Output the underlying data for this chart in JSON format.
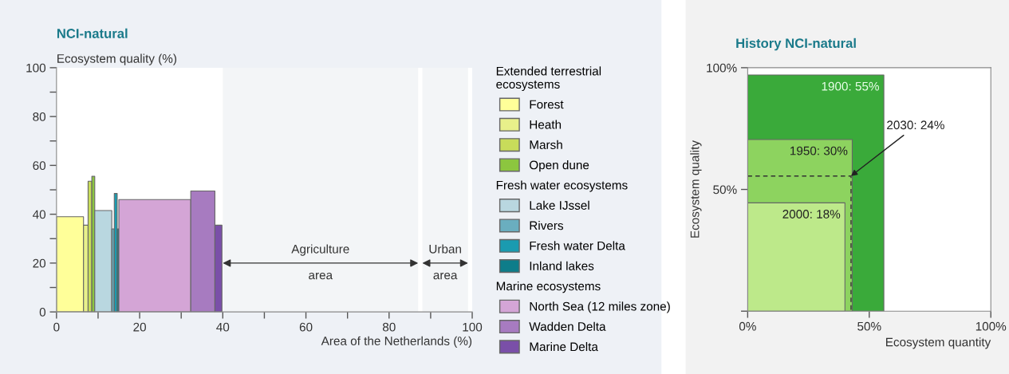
{
  "chart_data": [
    {
      "type": "area",
      "title": "NCI-natural",
      "xlabel": "Area of the Netherlands (%)",
      "ylabel": "Ecosystem quality (%)",
      "xlim": [
        0,
        100
      ],
      "ylim": [
        0,
        100
      ],
      "xticks": [
        0,
        {
          "value": 10,
          "label": null
        },
        20,
        {
          "value": 30,
          "label": null
        },
        40,
        {
          "value": 50,
          "label": null
        },
        60,
        {
          "value": 70,
          "label": null
        },
        80,
        {
          "value": 90,
          "label": null
        },
        100
      ],
      "yticks": [
        0,
        {
          "value": 10,
          "label": null
        },
        20,
        {
          "value": 30,
          "label": null
        },
        40,
        {
          "value": 50,
          "label": null
        },
        60,
        {
          "value": 70,
          "label": null
        },
        80,
        {
          "value": 90,
          "label": null
        },
        100
      ],
      "legend": "right",
      "grid": false,
      "annotations": [
        "Extended terrestrial\necosystems",
        "Fresh water ecosystems",
        "Marine ecosystems"
      ],
      "bands": [
        {
          "axis": "x",
          "from": 40,
          "to": 87,
          "label": "Agriculture\narea",
          "color": "#f3f5f7"
        },
        {
          "axis": "x",
          "from": 88,
          "to": 99,
          "label": "Urban\narea",
          "color": "#f3f5f7"
        }
      ],
      "series": [
        {
          "name": "Forest",
          "color": "#ffff99",
          "x": [
            0,
            6.5
          ],
          "values": [
            39,
            39
          ]
        },
        {
          "name": "Heath",
          "color": "#e8f08a",
          "x": [
            6.5,
            7.6
          ],
          "values": [
            35.5,
            35.5
          ]
        },
        {
          "name": "Marsh",
          "color": "#c8dc5a",
          "x": [
            7.6,
            8.5
          ],
          "values": [
            53.5,
            53.5
          ]
        },
        {
          "name": "Open dune",
          "color": "#8cc63f",
          "x": [
            8.5,
            9.2
          ],
          "values": [
            55.5,
            55.5
          ]
        },
        {
          "name": "Lake IJssel",
          "color": "#b9d7e0",
          "x": [
            9.2,
            13.3
          ],
          "values": [
            41.5,
            41.5
          ]
        },
        {
          "name": "Rivers",
          "color": "#6aaebf",
          "x": [
            13.3,
            13.9
          ],
          "values": [
            34,
            34
          ]
        },
        {
          "name": "Fresh water Delta",
          "color": "#1a9bb0",
          "x": [
            13.9,
            14.6
          ],
          "values": [
            48.5,
            48.5
          ]
        },
        {
          "name": "Inland lakes",
          "color": "#0e7d8a",
          "x": [
            14.6,
            15.0
          ],
          "values": [
            34,
            34
          ]
        },
        {
          "name": "North Sea (12 miles zone)",
          "color": "#d4a5d6",
          "x": [
            15.0,
            32.3
          ],
          "values": [
            46,
            46
          ]
        },
        {
          "name": "Wadden Delta",
          "color": "#a77bc0",
          "x": [
            32.3,
            38.1
          ],
          "values": [
            49.5,
            49.5
          ]
        },
        {
          "name": "Marine Delta",
          "color": "#7a4fa8",
          "x": [
            38.1,
            39.8
          ],
          "values": [
            35.5,
            35.5
          ]
        }
      ]
    },
    {
      "type": "area",
      "title": "History NCI-natural",
      "xlabel": "Ecosystem quantity",
      "ylabel": "Ecosystem quality",
      "xlim": [
        0,
        100
      ],
      "ylim": [
        0,
        100
      ],
      "xticks": [
        {
          "value": 0,
          "label": "0%"
        },
        {
          "value": 50,
          "label": "50%"
        },
        {
          "value": 100,
          "label": "100%"
        }
      ],
      "yticks": [
        {
          "value": 0,
          "label": null
        },
        {
          "value": 50,
          "label": "50%"
        },
        {
          "value": 100,
          "label": "100%"
        }
      ],
      "grid": false,
      "series": [
        {
          "name": "1900: 55%",
          "color": "#3aaa3a",
          "x": [
            0,
            56
          ],
          "values": [
            97,
            97
          ]
        },
        {
          "name": "1950: 30%",
          "color": "#8dd35f",
          "x": [
            0,
            43
          ],
          "values": [
            70.5,
            70.5
          ]
        },
        {
          "name": "2000: 18%",
          "color": "#bde98a",
          "x": [
            0,
            40
          ],
          "values": [
            44.5,
            44.5
          ]
        },
        {
          "name": "2030: 24%",
          "type": "line",
          "line_style": "dashed",
          "color": "#333333",
          "x": [
            0,
            42.5,
            42.5
          ],
          "values": [
            55.5,
            55.5,
            0
          ]
        }
      ]
    }
  ]
}
